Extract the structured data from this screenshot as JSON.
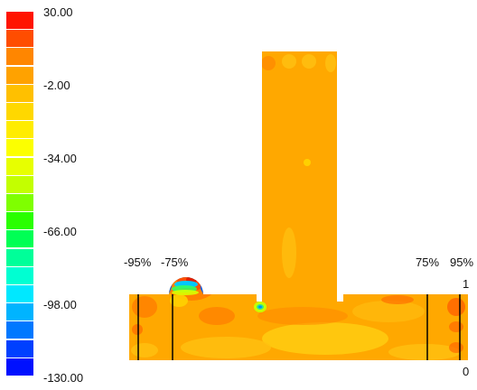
{
  "colorbar": {
    "ticks": [
      "30.00",
      "-2.00",
      "-34.00",
      "-66.00",
      "-98.00",
      "-130.00"
    ],
    "colors": [
      "#ff1400",
      "#ff4d00",
      "#ff8600",
      "#ffa200",
      "#ffc000",
      "#ffd800",
      "#ffec00",
      "#fcff00",
      "#e7ff00",
      "#c3ff00",
      "#7fff00",
      "#2aff00",
      "#00ff55",
      "#00ff99",
      "#00ffd2",
      "#00e8ff",
      "#00b4ff",
      "#0078ff",
      "#0040ff",
      "#0010ff"
    ]
  },
  "labels": {
    "left_95": "-95%",
    "left_75": "-75%",
    "right_75": "75%",
    "right_95": "95%",
    "top_value": "1",
    "bottom_value": "0"
  },
  "palette": {
    "base_fill": "#ffa800",
    "hot": "#ff5000",
    "cold": "#0070ff"
  }
}
